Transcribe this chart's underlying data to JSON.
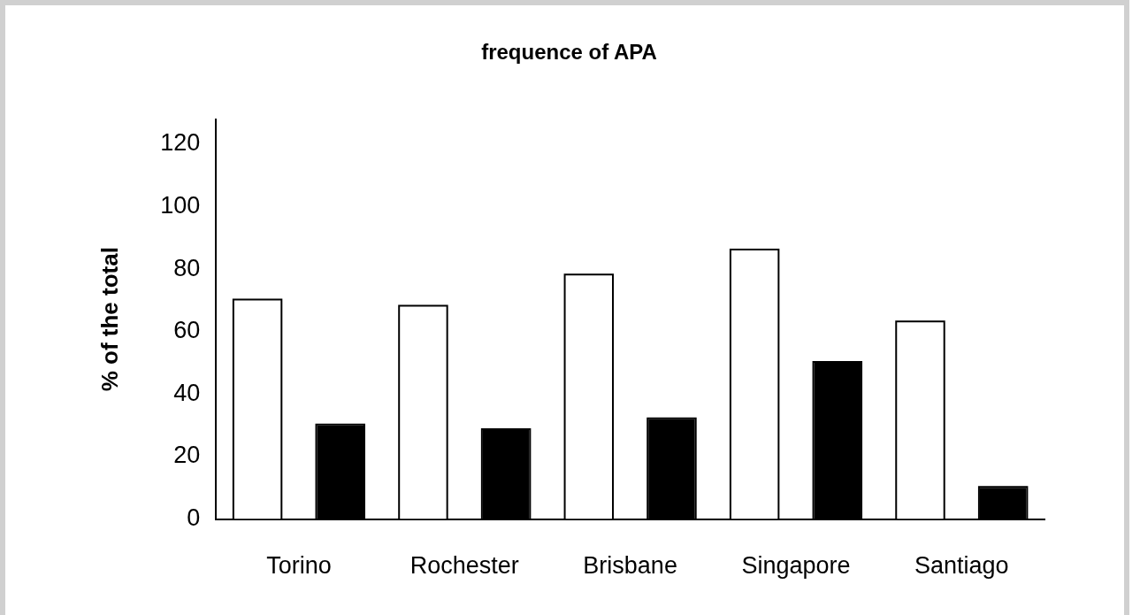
{
  "chart_data": {
    "type": "bar",
    "title": "frequence of APA",
    "ylabel": "% of the total",
    "categories": [
      "Torino",
      "Rochester",
      "Brisbane",
      "Singapore",
      "Santiago"
    ],
    "series": [
      {
        "color": "#ffffff",
        "values": [
          70,
          68,
          78,
          86,
          63
        ]
      },
      {
        "color": "#000000",
        "values": [
          30,
          28.5,
          32,
          50,
          10
        ]
      }
    ],
    "ylim": [
      0,
      128
    ],
    "yticks": [
      0,
      20,
      40,
      60,
      80,
      100,
      120
    ],
    "grid": false,
    "legend": false
  }
}
